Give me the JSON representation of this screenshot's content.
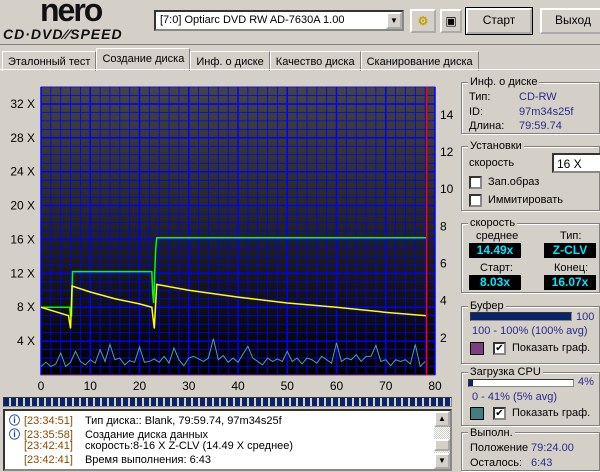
{
  "logo": {
    "line1": "nero",
    "line2": "CD·DVD SPEED"
  },
  "toolbar": {
    "drive": "[7:0]  Optiarc DVD RW AD-7630A 1.00",
    "start": "Старт",
    "exit": "Выход"
  },
  "tabs": [
    {
      "label": "Эталонный тест"
    },
    {
      "label": "Создание диска",
      "active": true
    },
    {
      "label": "Инф. о диске"
    },
    {
      "label": "Качество диска"
    },
    {
      "label": "Сканирование диска"
    }
  ],
  "disc_info": {
    "title": "Инф. о диске",
    "type_label": "Тип:",
    "type": "CD-RW",
    "id_label": "ID:",
    "id": "97m34s25f",
    "length_label": "Длина:",
    "length": "79:59.74"
  },
  "settings": {
    "title": "Установки",
    "speed_label": "скорость",
    "speed": "16 X",
    "image_label": "Зап.образ",
    "image_checked": false,
    "simulate_label": "Иммитировать",
    "simulate_checked": false
  },
  "speed": {
    "title": "скорость",
    "avg_label": "среднее",
    "avg": "14.49x",
    "type_label": "Тип:",
    "type": "Z-CLV",
    "start_label": "Старт:",
    "start": "8.03x",
    "end_label": "Конец:",
    "end": "16.07x"
  },
  "buffer": {
    "title": "Буфер",
    "percent": 100,
    "value_text": "100",
    "range": "100 - 100% (100% avg)",
    "color": "#7b3f7f",
    "show_label": "Показать граф.",
    "show_checked": true
  },
  "cpu": {
    "title": "Загрузка CPU",
    "percent": 4,
    "value_text": "4%",
    "range": "0 - 41% (5% avg)",
    "color": "#3f7f7f",
    "show_label": "Показать граф.",
    "show_checked": true
  },
  "progress": {
    "title": "Выполн.",
    "position_label": "Положение",
    "position": "79:24.00",
    "remaining_label": "Осталось:",
    "remaining": "6:43",
    "percent": 100
  },
  "log": [
    {
      "icon": "info-icon",
      "time": "[23:34:51]",
      "text": "Тип диска:: Blank, 79:59.74, 97m34s25f"
    },
    {
      "icon": "info-icon",
      "time": "[23:35:58]",
      "text": "Создание диска данных"
    },
    {
      "icon": "",
      "time": "[23:42:41]",
      "text": "скорость:8-16 X Z-CLV (14.49 X среднее)"
    },
    {
      "icon": "",
      "time": "[23:42:41]",
      "text": "Время выполнения:  6:43"
    }
  ],
  "chart_data": {
    "type": "line",
    "xlim": [
      0,
      80
    ],
    "ylim_left": [
      0,
      34
    ],
    "ylim_right": [
      0,
      15.5
    ],
    "x_ticks": [
      "0",
      "10",
      "20",
      "30",
      "40",
      "50",
      "60",
      "70",
      "80"
    ],
    "y_left_ticks": [
      "4 X",
      "8 X",
      "12 X",
      "16 X",
      "20 X",
      "24 X",
      "28 X",
      "32 X"
    ],
    "y_right_ticks": [
      "2",
      "4",
      "6",
      "8",
      "10",
      "12",
      "14"
    ],
    "grid": true,
    "position_marker": 78.3,
    "colors": {
      "write": "#00ff00",
      "rotation": "#ffff00",
      "cpu": "#4f9f9f",
      "marker": "#ff0000",
      "grid": "#0000ff"
    },
    "series": [
      {
        "key": "write",
        "points": [
          [
            0,
            8
          ],
          [
            5.8,
            8
          ],
          [
            6,
            7
          ],
          [
            6.2,
            7
          ],
          [
            6.4,
            12.2
          ],
          [
            22.5,
            12.2
          ],
          [
            22.7,
            9.5
          ],
          [
            22.9,
            8.5
          ],
          [
            23.1,
            12.2
          ],
          [
            23.3,
            15
          ],
          [
            23.5,
            16.2
          ],
          [
            78.3,
            16.2
          ]
        ]
      },
      {
        "key": "rotation",
        "points": [
          [
            0,
            8
          ],
          [
            5.6,
            7
          ],
          [
            5.8,
            6.2
          ],
          [
            6,
            5.5
          ],
          [
            6.3,
            10.5
          ],
          [
            10,
            9.8
          ],
          [
            15,
            9
          ],
          [
            20,
            8.4
          ],
          [
            22.5,
            8
          ],
          [
            22.8,
            6.5
          ],
          [
            23,
            5.5
          ],
          [
            23.5,
            10.7
          ],
          [
            30,
            10
          ],
          [
            40,
            9.2
          ],
          [
            50,
            8.5
          ],
          [
            60,
            8
          ],
          [
            70,
            7.4
          ],
          [
            78.3,
            7
          ]
        ]
      },
      {
        "key": "cpu",
        "points": [
          [
            0,
            1
          ],
          [
            1,
            1.5
          ],
          [
            2,
            1
          ],
          [
            3,
            1.3
          ],
          [
            4,
            2.6
          ],
          [
            5,
            1
          ],
          [
            6,
            1.5
          ],
          [
            7,
            2.8
          ],
          [
            8,
            1.6
          ],
          [
            9,
            1.2
          ],
          [
            10,
            1.8
          ],
          [
            11,
            1.4
          ],
          [
            12,
            3
          ],
          [
            13,
            1.6
          ],
          [
            14,
            3.6
          ],
          [
            15,
            1.8
          ],
          [
            16,
            2
          ],
          [
            17,
            1.2
          ],
          [
            18,
            1.7
          ],
          [
            19,
            1.5
          ],
          [
            20,
            3.3
          ],
          [
            21,
            1.5
          ],
          [
            22,
            1.6
          ],
          [
            23,
            1.9
          ],
          [
            24,
            1.5
          ],
          [
            25,
            2.2
          ],
          [
            26,
            1.4
          ],
          [
            27,
            3.2
          ],
          [
            28,
            1.8
          ],
          [
            29,
            1.1
          ],
          [
            30,
            2
          ],
          [
            31,
            2.2
          ],
          [
            33,
            1.6
          ],
          [
            34,
            2
          ],
          [
            35,
            4.3
          ],
          [
            36,
            1.8
          ],
          [
            37,
            2.3
          ],
          [
            38,
            1.5
          ],
          [
            39,
            2
          ],
          [
            40,
            1.5
          ],
          [
            42,
            3.4
          ],
          [
            43,
            2
          ],
          [
            44,
            1.6
          ],
          [
            45,
            1.2
          ],
          [
            46,
            2
          ],
          [
            47,
            1.6
          ],
          [
            48,
            1.9
          ],
          [
            49,
            1.6
          ],
          [
            50,
            2.8
          ],
          [
            51,
            1.6
          ],
          [
            52,
            2
          ],
          [
            53,
            1.3
          ],
          [
            54,
            2
          ],
          [
            55,
            1.8
          ],
          [
            56,
            1.4
          ],
          [
            57,
            2.2
          ],
          [
            59,
            1.4
          ],
          [
            60,
            3.8
          ],
          [
            61,
            1.6
          ],
          [
            62,
            2
          ],
          [
            63,
            1.8
          ],
          [
            64,
            2.4
          ],
          [
            65,
            1.6
          ],
          [
            66,
            2.2
          ],
          [
            67,
            2.2
          ],
          [
            68,
            3.5
          ],
          [
            69,
            1.6
          ],
          [
            70,
            1.8
          ],
          [
            71,
            1.1
          ],
          [
            72,
            1.8
          ],
          [
            73,
            1.6
          ],
          [
            74,
            1.8
          ],
          [
            75,
            1.3
          ],
          [
            76,
            3.6
          ],
          [
            77,
            1
          ],
          [
            78,
            1.6
          ]
        ]
      }
    ]
  }
}
